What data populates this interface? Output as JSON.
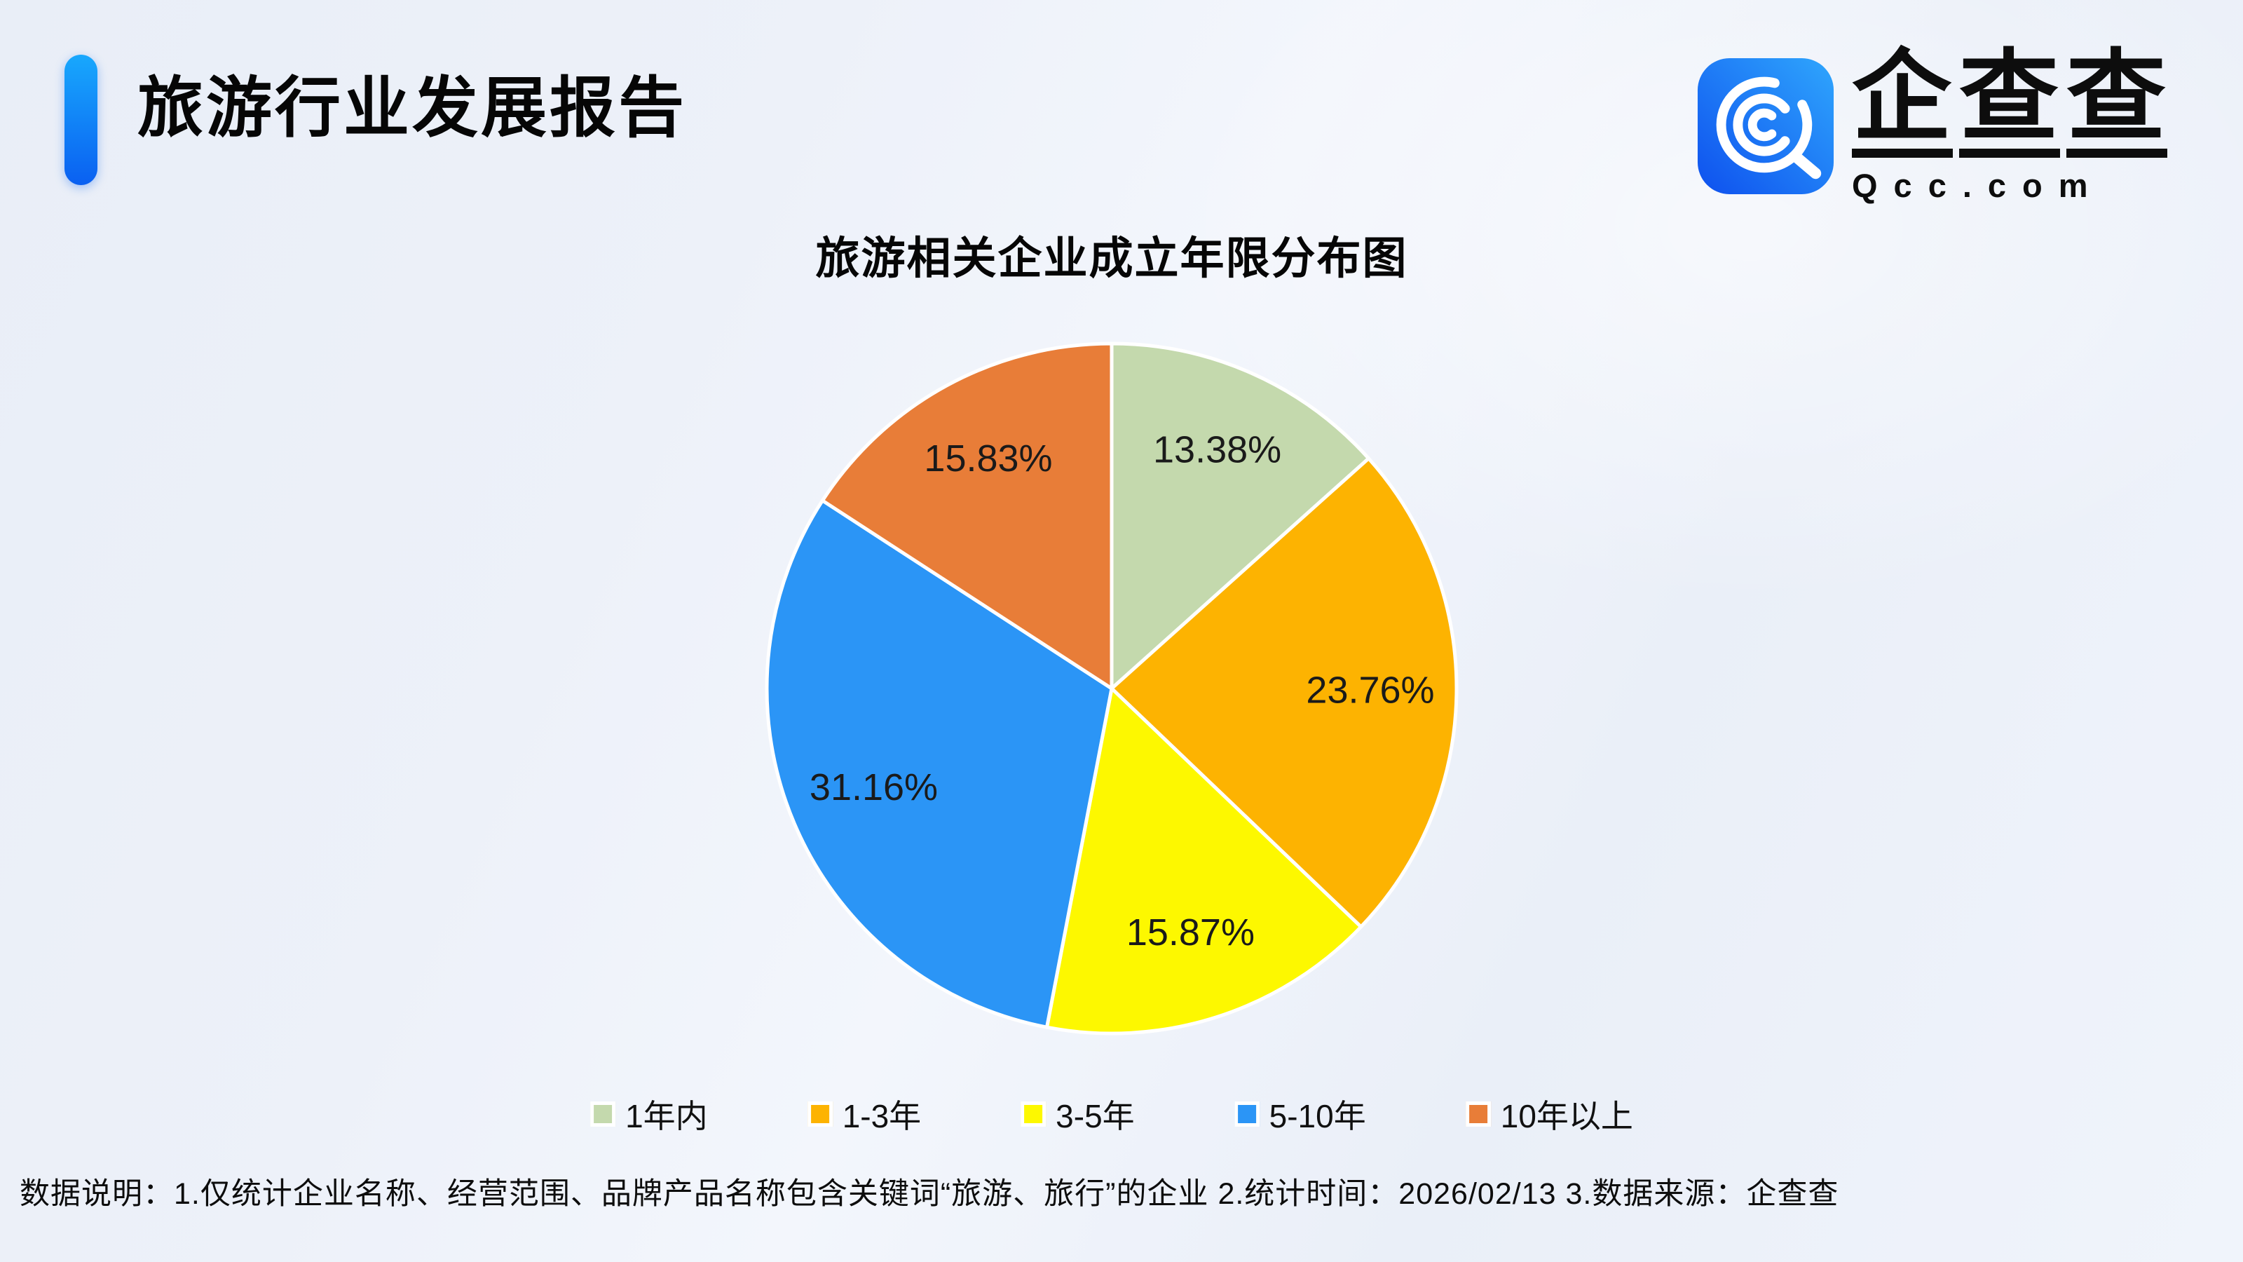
{
  "page": {
    "title": "旅游行业发展报告"
  },
  "logo": {
    "brand_name": "企查查",
    "domain": "Qcc.com",
    "tile_gradient": [
      "#0e50ee",
      "#2fa6fd"
    ]
  },
  "chart_data": {
    "type": "pie",
    "title": "旅游相关企业成立年限分布图",
    "categories": [
      "1年内",
      "1-3年",
      "3-5年",
      "5-10年",
      "10年以上"
    ],
    "values": [
      13.38,
      23.76,
      15.87,
      31.16,
      15.83
    ],
    "value_suffix": "%",
    "colors": [
      "#c4d9ad",
      "#fdb301",
      "#fdf800",
      "#2b95f6",
      "#e87d38"
    ],
    "slice_border_color": "#ffffff",
    "label_color": "#1a1a1a",
    "start_angle_deg": -90,
    "direction": "clockwise",
    "label_radius_fraction": 0.75,
    "legend_position": "bottom"
  },
  "footer": {
    "note": "数据说明：1.仅统计企业名称、经营范围、品牌产品名称包含关键词“旅游、旅行”的企业  2.统计时间：2026/02/13  3.数据来源：企查查"
  },
  "accent": {
    "bar_top": "#18a8fd",
    "bar_bottom": "#0a60f1"
  }
}
